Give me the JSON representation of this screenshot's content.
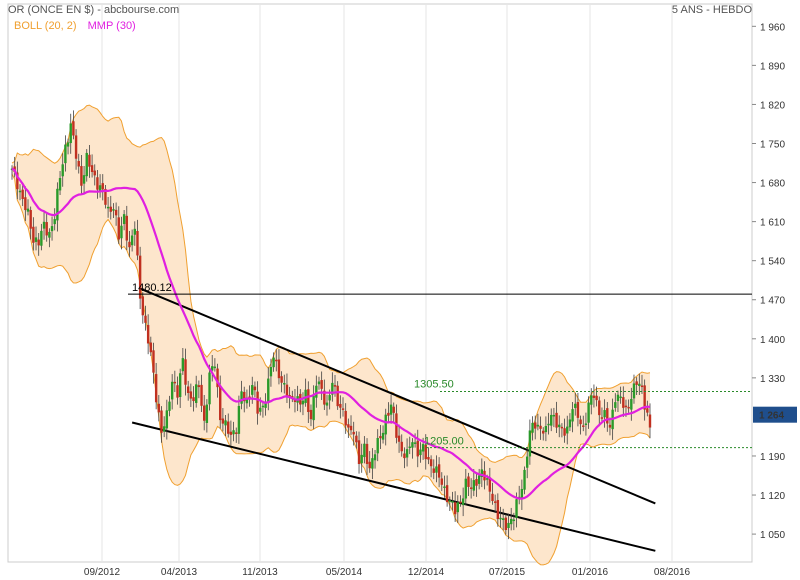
{
  "header": {
    "title": "OR (ONCE EN $) - abcbourse.com",
    "period": "5 ANS - HEBDO"
  },
  "legend": [
    {
      "label": "BOLL (20, 2)",
      "color": "#f0a030"
    },
    {
      "label": "MMP (30)",
      "color": "#e020e0"
    }
  ],
  "colors": {
    "band_fill": "#fde6cc",
    "band_line": "#f0a030",
    "mmp": "#e020e0",
    "up": "#2a9a2a",
    "down": "#c03020",
    "wick": "#404040",
    "grid": "#e6e6e6",
    "trend": "#000000",
    "level_green": "#2a8a2a",
    "last_box": "#1f4e8c"
  },
  "chart_data": {
    "type": "candlestick",
    "title": "OR (ONCE EN $) - abcbourse.com",
    "ylim": [
      1000,
      2000
    ],
    "yticks": [
      1960,
      1890,
      1820,
      1750,
      1680,
      1610,
      1540,
      1470,
      1400,
      1330,
      1264,
      1190,
      1120,
      1050
    ],
    "xticks": [
      "09/2012",
      "04/2013",
      "11/2013",
      "05/2014",
      "12/2014",
      "07/2015",
      "01/2016",
      "08/2016"
    ],
    "last_value": "1 264",
    "grid": "vertical",
    "anchors": [
      [
        0,
        1700
      ],
      [
        2,
        1680
      ],
      [
        4,
        1650
      ],
      [
        6,
        1620
      ],
      [
        8,
        1580
      ],
      [
        10,
        1575
      ],
      [
        12,
        1600
      ],
      [
        14,
        1590
      ],
      [
        16,
        1620
      ],
      [
        18,
        1690
      ],
      [
        20,
        1745
      ],
      [
        22,
        1780
      ],
      [
        24,
        1730
      ],
      [
        26,
        1680
      ],
      [
        28,
        1720
      ],
      [
        30,
        1700
      ],
      [
        32,
        1680
      ],
      [
        34,
        1660
      ],
      [
        36,
        1630
      ],
      [
        38,
        1640
      ],
      [
        40,
        1580
      ],
      [
        42,
        1620
      ],
      [
        44,
        1560
      ],
      [
        46,
        1600
      ],
      [
        48,
        1480
      ],
      [
        50,
        1420
      ],
      [
        52,
        1370
      ],
      [
        54,
        1300
      ],
      [
        56,
        1230
      ],
      [
        58,
        1260
      ],
      [
        60,
        1330
      ],
      [
        62,
        1300
      ],
      [
        64,
        1360
      ],
      [
        66,
        1300
      ],
      [
        68,
        1290
      ],
      [
        70,
        1320
      ],
      [
        72,
        1250
      ],
      [
        74,
        1330
      ],
      [
        76,
        1360
      ],
      [
        78,
        1260
      ],
      [
        80,
        1240
      ],
      [
        82,
        1230
      ],
      [
        84,
        1240
      ],
      [
        86,
        1300
      ],
      [
        88,
        1290
      ],
      [
        90,
        1320
      ],
      [
        92,
        1270
      ],
      [
        94,
        1280
      ],
      [
        96,
        1320
      ],
      [
        98,
        1370
      ],
      [
        100,
        1340
      ],
      [
        102,
        1310
      ],
      [
        104,
        1290
      ],
      [
        106,
        1300
      ],
      [
        108,
        1280
      ],
      [
        110,
        1300
      ],
      [
        112,
        1260
      ],
      [
        114,
        1320
      ],
      [
        116,
        1310
      ],
      [
        118,
        1280
      ],
      [
        120,
        1320
      ],
      [
        122,
        1290
      ],
      [
        124,
        1270
      ],
      [
        126,
        1230
      ],
      [
        128,
        1240
      ],
      [
        130,
        1180
      ],
      [
        132,
        1200
      ],
      [
        134,
        1170
      ],
      [
        136,
        1200
      ],
      [
        138,
        1220
      ],
      [
        140,
        1260
      ],
      [
        142,
        1280
      ],
      [
        144,
        1230
      ],
      [
        146,
        1200
      ],
      [
        148,
        1190
      ],
      [
        150,
        1220
      ],
      [
        152,
        1200
      ],
      [
        154,
        1200
      ],
      [
        156,
        1180
      ],
      [
        158,
        1170
      ],
      [
        160,
        1150
      ],
      [
        162,
        1130
      ],
      [
        164,
        1110
      ],
      [
        166,
        1090
      ],
      [
        168,
        1110
      ],
      [
        170,
        1140
      ],
      [
        172,
        1130
      ],
      [
        174,
        1150
      ],
      [
        176,
        1160
      ],
      [
        178,
        1140
      ],
      [
        180,
        1120
      ],
      [
        182,
        1080
      ],
      [
        184,
        1070
      ],
      [
        186,
        1070
      ],
      [
        188,
        1080
      ],
      [
        190,
        1120
      ],
      [
        192,
        1160
      ],
      [
        194,
        1230
      ],
      [
        196,
        1250
      ],
      [
        198,
        1240
      ],
      [
        200,
        1230
      ],
      [
        202,
        1270
      ],
      [
        204,
        1250
      ],
      [
        206,
        1230
      ],
      [
        208,
        1240
      ],
      [
        210,
        1280
      ],
      [
        212,
        1260
      ],
      [
        214,
        1240
      ],
      [
        216,
        1280
      ],
      [
        218,
        1300
      ],
      [
        220,
        1270
      ],
      [
        222,
        1260
      ],
      [
        224,
        1240
      ],
      [
        226,
        1300
      ],
      [
        228,
        1290
      ],
      [
        230,
        1270
      ],
      [
        232,
        1300
      ],
      [
        234,
        1320
      ],
      [
        236,
        1310
      ],
      [
        238,
        1264
      ]
    ],
    "n_candles": 240,
    "bollinger": {
      "period": 20,
      "k": 2
    },
    "mmp": {
      "period": 30
    },
    "annotations": [
      {
        "label": "1480.12",
        "value": 1480.12,
        "style": "solid"
      },
      {
        "label": "1305.50",
        "value": 1305.5,
        "style": "dotted"
      },
      {
        "label": "1205.00",
        "value": 1205.0,
        "style": "dotted"
      }
    ],
    "trendlines": [
      {
        "from": [
          48,
          1490
        ],
        "to": [
          238,
          1105
        ]
      },
      {
        "from": [
          45,
          1250
        ],
        "to": [
          238,
          1020
        ]
      }
    ]
  }
}
